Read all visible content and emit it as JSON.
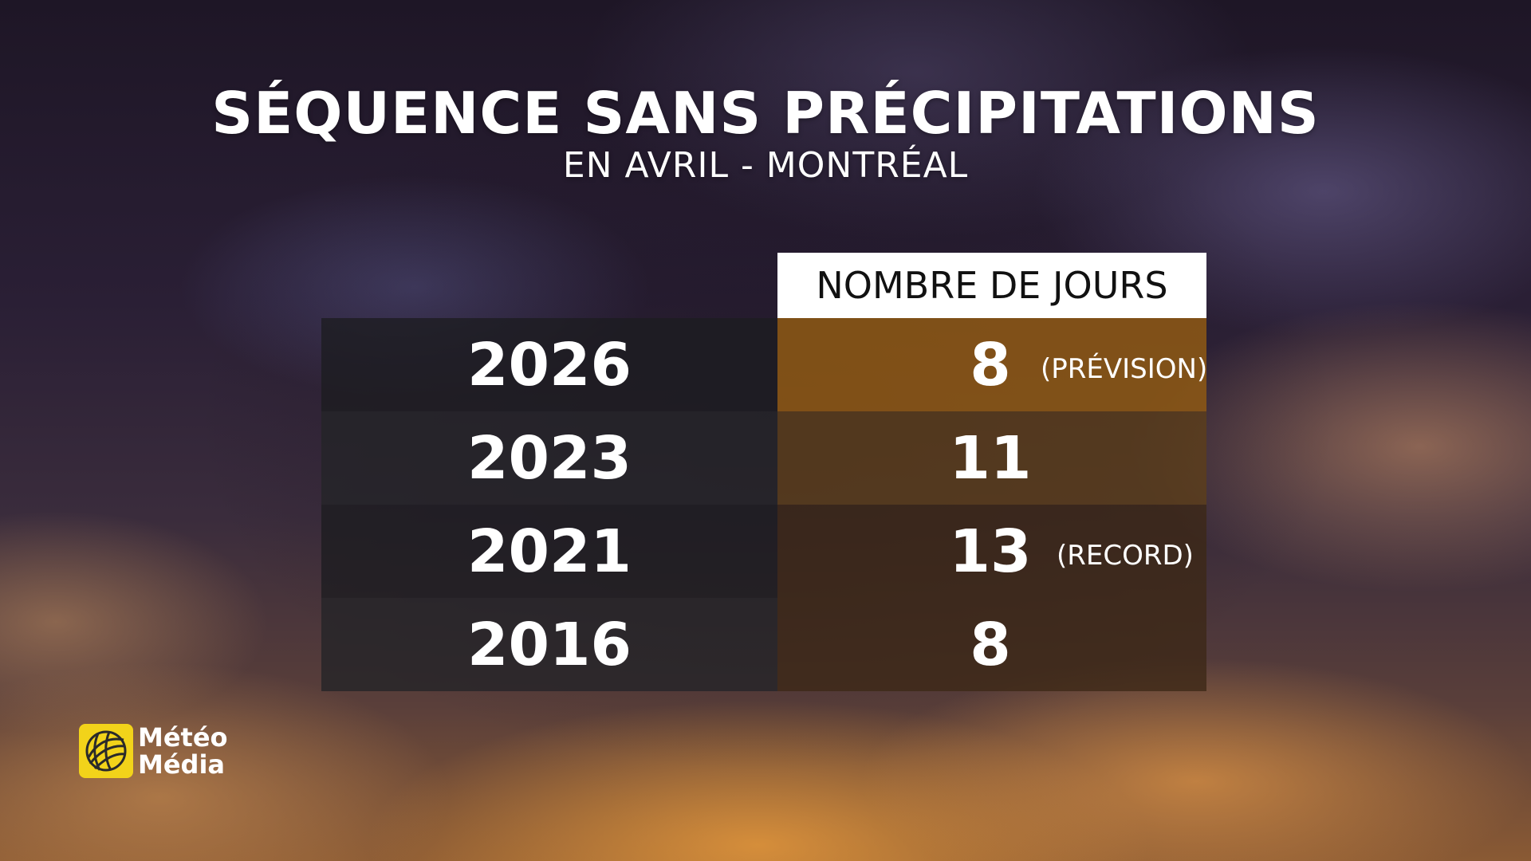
{
  "header": {
    "title": "SÉQUENCE SANS PRÉCIPITATIONS",
    "subtitle": "EN AVRIL - MONTRÉAL"
  },
  "colors": {
    "highlight_row": "#8c5814",
    "logo_yellow": "#f2d31a"
  },
  "chart_data": {
    "type": "table",
    "columns": [
      "",
      "NOMBRE DE JOURS"
    ],
    "rows": [
      {
        "year": "2026",
        "days": "8",
        "note": "(PRÉVISION)"
      },
      {
        "year": "2023",
        "days": "11",
        "note": ""
      },
      {
        "year": "2021",
        "days": "13",
        "note": "(RECORD)"
      },
      {
        "year": "2016",
        "days": "8",
        "note": ""
      }
    ]
  },
  "logo": {
    "icon": "globe-icon",
    "line1": "Météo",
    "line2": "Média"
  }
}
